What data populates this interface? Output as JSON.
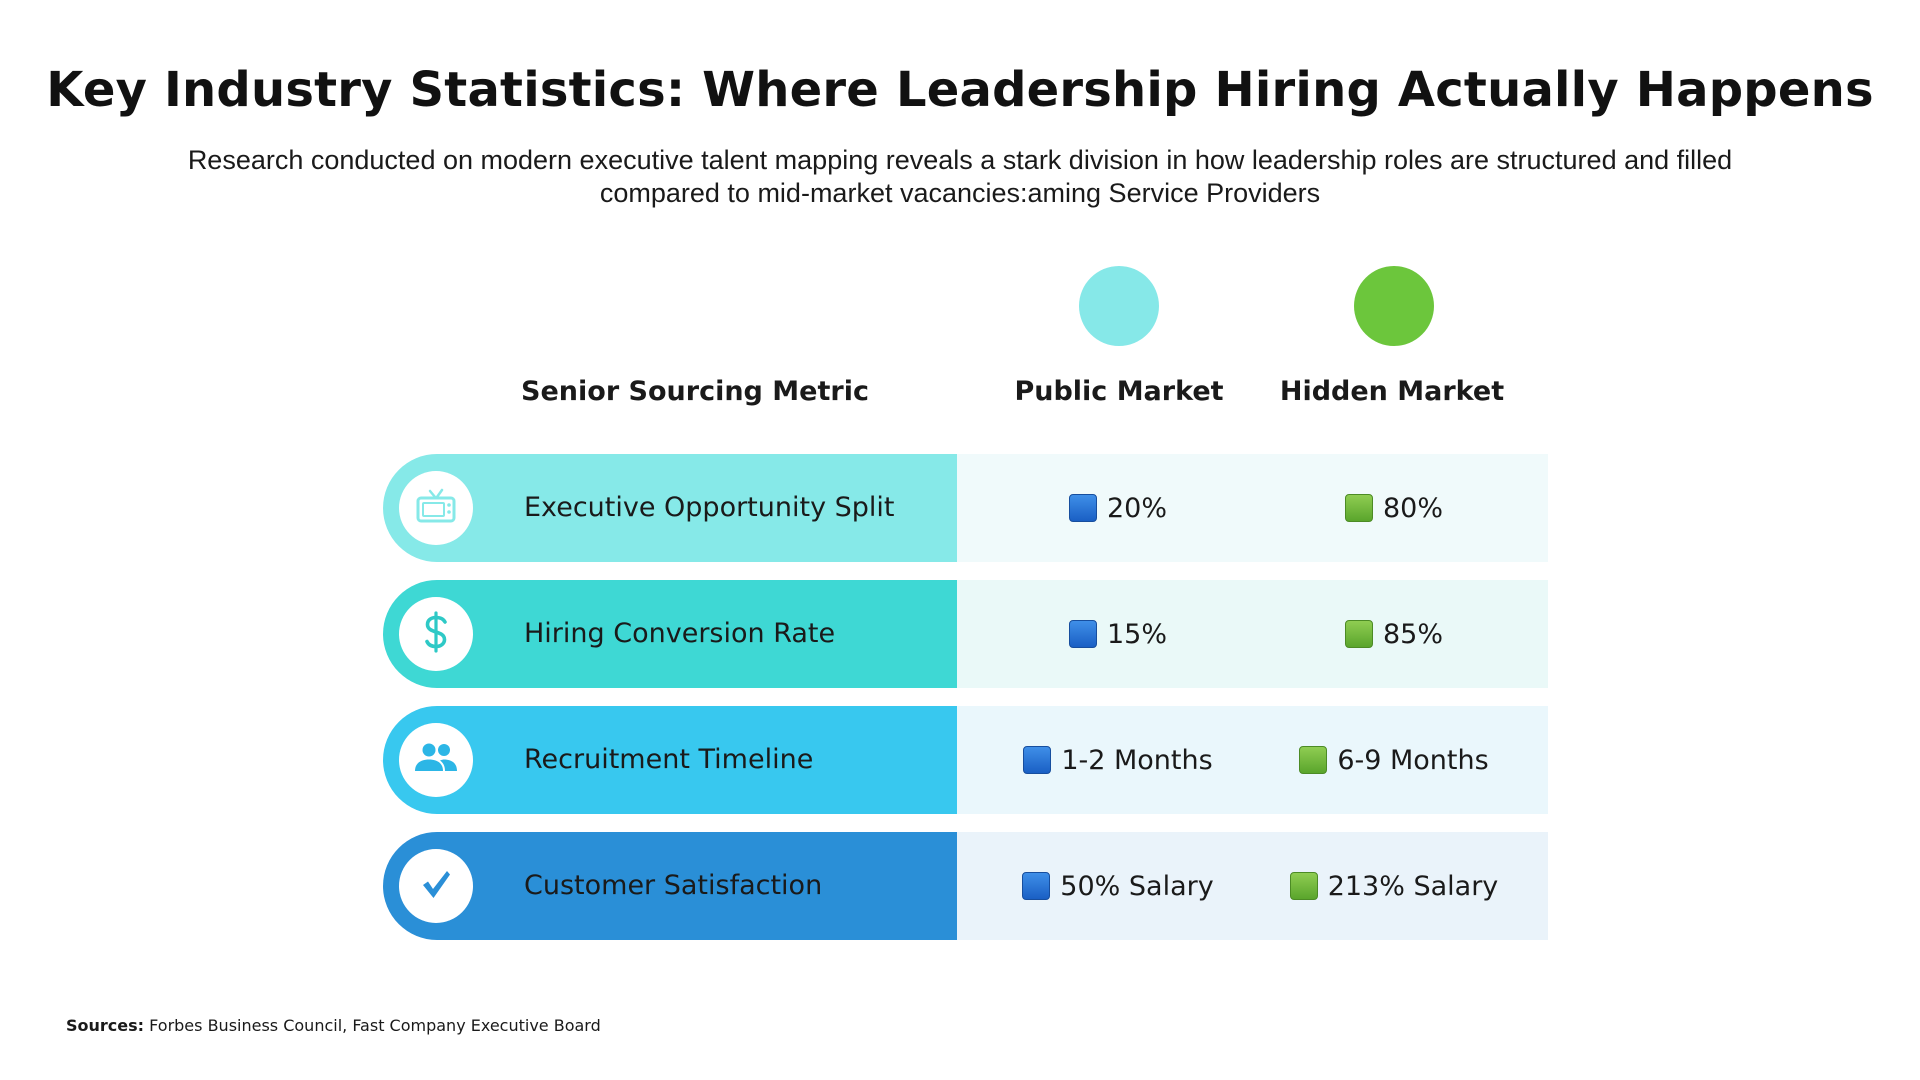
{
  "title": "Key Industry Statistics: Where Leadership Hiring Actually Happens",
  "subtitle_line1": "Research conducted on modern executive talent mapping reveals a stark division in how leadership roles are structured and filled",
  "subtitle_line2": "compared to mid-market vacancies:aming Service Providers",
  "legend": {
    "public_color": "#86e8e8",
    "hidden_color": "#6cc63c"
  },
  "headers": {
    "metric": "Senior Sourcing Metric",
    "public": "Public Market",
    "hidden": "Hidden Market"
  },
  "rows": [
    {
      "label": "Executive Opportunity Split",
      "icon": "tv-icon",
      "left_color": "#86e9e8",
      "right_color": "#f0fafb",
      "icon_color": "#86e9e8",
      "public": "20%",
      "hidden": "80%"
    },
    {
      "label": "Hiring Conversion Rate",
      "icon": "dollar-icon",
      "left_color": "#3ed8d4",
      "right_color": "#eaf9f8",
      "icon_color": "#2ec9c6",
      "public": "15%",
      "hidden": "85%"
    },
    {
      "label": "Recruitment Timeline",
      "icon": "people-icon",
      "left_color": "#38c8ef",
      "right_color": "#eaf7fc",
      "icon_color": "#2cb6e6",
      "public": "1-2 Months",
      "hidden": "6-9 Months"
    },
    {
      "label": "Customer Satisfaction",
      "icon": "checkmark-icon",
      "left_color": "#2a8fd7",
      "right_color": "#eaf3fa",
      "icon_color": "#2a8fd7",
      "public": "50% Salary",
      "hidden": "213% Salary"
    }
  ],
  "sources": {
    "label": "Sources:",
    "text": " Forbes Business Council, Fast Company Executive Board"
  }
}
